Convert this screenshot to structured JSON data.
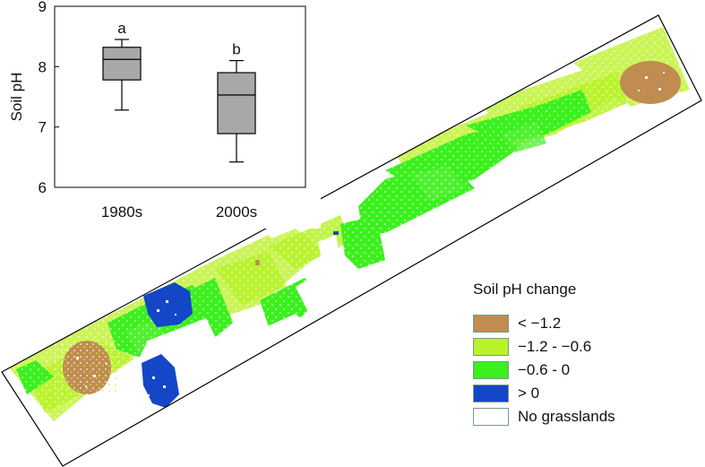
{
  "boxplot": {
    "ylabel": "Soil pH",
    "yticks": [
      "6",
      "7",
      "8",
      "9"
    ],
    "ylim": [
      6,
      9
    ],
    "groups": [
      {
        "category": "1980s",
        "letter": "a",
        "min": 7.28,
        "q1": 7.78,
        "median": 8.12,
        "q3": 8.32,
        "max": 8.45
      },
      {
        "category": "2000s",
        "letter": "b",
        "min": 6.42,
        "q1": 6.89,
        "median": 7.53,
        "q3": 7.9,
        "max": 8.1
      }
    ]
  },
  "legend": {
    "title": "Soil pH change",
    "items": [
      {
        "label": "< −1.2",
        "color": "#c08c50"
      },
      {
        "label": "−1.2 - −0.6",
        "color": "#b8f22a"
      },
      {
        "label": "−0.6 - 0",
        "color": "#3cf01e"
      },
      {
        "label": "> 0",
        "color": "#1446c8"
      },
      {
        "label": "No grasslands",
        "color": "#ffffff"
      }
    ]
  },
  "chart_data": {
    "type": "box",
    "categories": [
      "1980s",
      "2000s"
    ],
    "ylabel": "Soil pH",
    "ylim": [
      6,
      9
    ],
    "significance_letters": [
      "a",
      "b"
    ],
    "series": [
      {
        "values": [
          {
            "min": 7.28,
            "q1": 7.78,
            "median": 8.12,
            "q3": 8.32,
            "max": 8.45
          },
          {
            "min": 6.42,
            "q1": 6.89,
            "median": 7.53,
            "q3": 7.9,
            "max": 8.1
          }
        ]
      }
    ],
    "grid": false
  },
  "colors": {
    "box_fill": "#a8a8a8",
    "strip_outline": "#000000"
  }
}
